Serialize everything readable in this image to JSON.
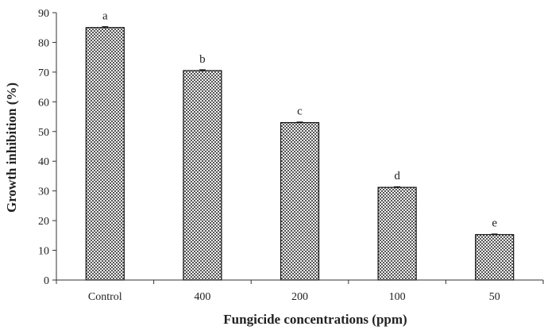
{
  "chart_data": {
    "type": "bar",
    "title": "",
    "xlabel": "Fungicide concentrations (ppm)",
    "ylabel": "Growth inhibition (%)",
    "categories": [
      "Control",
      "400",
      "200",
      "100",
      "50"
    ],
    "values": [
      85,
      70.5,
      53,
      31.2,
      15.3
    ],
    "errors": [
      0.3,
      0.3,
      0.2,
      0.2,
      0.2
    ],
    "letters": [
      "a",
      "b",
      "c",
      "d",
      "e"
    ],
    "ylim": [
      0,
      90
    ],
    "yticks": [
      "0",
      "10",
      "20",
      "30",
      "40",
      "50",
      "60",
      "70",
      "80",
      "90"
    ],
    "grid": false,
    "legend": "none",
    "colors": {
      "bar_fill": "#777777",
      "bar_edge": "#111111",
      "axis": "#333333"
    }
  }
}
